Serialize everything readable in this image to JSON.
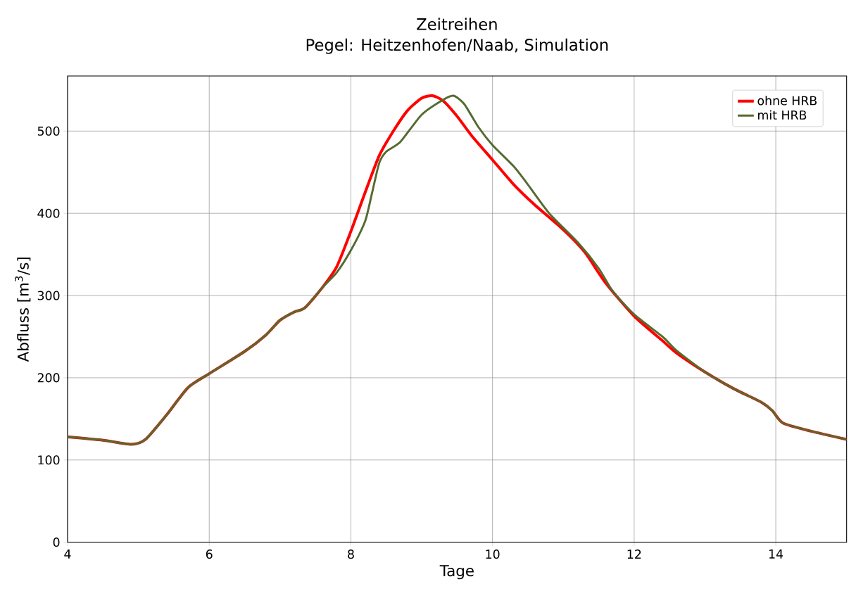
{
  "chart_data": {
    "type": "line",
    "title": "Zeitreihen",
    "subtitle": "Pegel: Heitzenhofen/Naab, Simulation",
    "xlabel": "Tage",
    "ylabel": "Abfluss [m$^{3}$/s]",
    "xlim": [
      4,
      15
    ],
    "ylim": [
      0,
      567
    ],
    "xticks": [
      4,
      6,
      8,
      10,
      12,
      14
    ],
    "yticks": [
      0,
      100,
      200,
      300,
      400,
      500
    ],
    "grid": true,
    "legend": "top right",
    "line_style": "solid",
    "series": [
      {
        "name": "ohne HRB",
        "color": "#ff0000",
        "x": [
          4,
          4.5,
          4.9,
          5.1,
          5.4,
          5.7,
          6,
          6.5,
          6.8,
          7.0,
          7.2,
          7.35,
          7.6,
          7.8,
          8.0,
          8.2,
          8.4,
          8.6,
          8.8,
          9.0,
          9.15,
          9.3,
          9.5,
          9.7,
          10.0,
          10.3,
          10.6,
          11.0,
          11.3,
          11.6,
          12.0,
          12.4,
          12.6,
          13.0,
          13.4,
          13.8,
          13.95,
          14.1,
          14.5,
          15
        ],
        "values": [
          128,
          124,
          119,
          125,
          155,
          188,
          205,
          232,
          252,
          270,
          280,
          285,
          310,
          335,
          378,
          425,
          470,
          500,
          525,
          540,
          543,
          537,
          518,
          495,
          465,
          435,
          410,
          380,
          353,
          315,
          275,
          245,
          230,
          207,
          187,
          170,
          160,
          145,
          135,
          125
        ]
      },
      {
        "name": "mit HRB",
        "color": "#556b2f",
        "x": [
          4,
          4.5,
          4.9,
          5.1,
          5.4,
          5.7,
          6,
          6.5,
          6.8,
          7.0,
          7.2,
          7.35,
          7.6,
          7.8,
          8.0,
          8.2,
          8.3,
          8.4,
          8.5,
          8.7,
          9.0,
          9.3,
          9.45,
          9.6,
          9.8,
          10.0,
          10.3,
          10.5,
          10.8,
          11.2,
          11.5,
          11.7,
          12.0,
          12.4,
          12.6,
          13.0,
          13.4,
          13.8,
          13.95,
          14.1,
          14.5,
          15
        ],
        "values": [
          128,
          124,
          119,
          125,
          155,
          188,
          205,
          232,
          252,
          270,
          280,
          285,
          310,
          328,
          355,
          390,
          425,
          461,
          475,
          487,
          520,
          538,
          543,
          533,
          505,
          483,
          457,
          435,
          400,
          365,
          333,
          305,
          277,
          250,
          233,
          207,
          187,
          170,
          160,
          145,
          135,
          125
        ]
      }
    ]
  }
}
